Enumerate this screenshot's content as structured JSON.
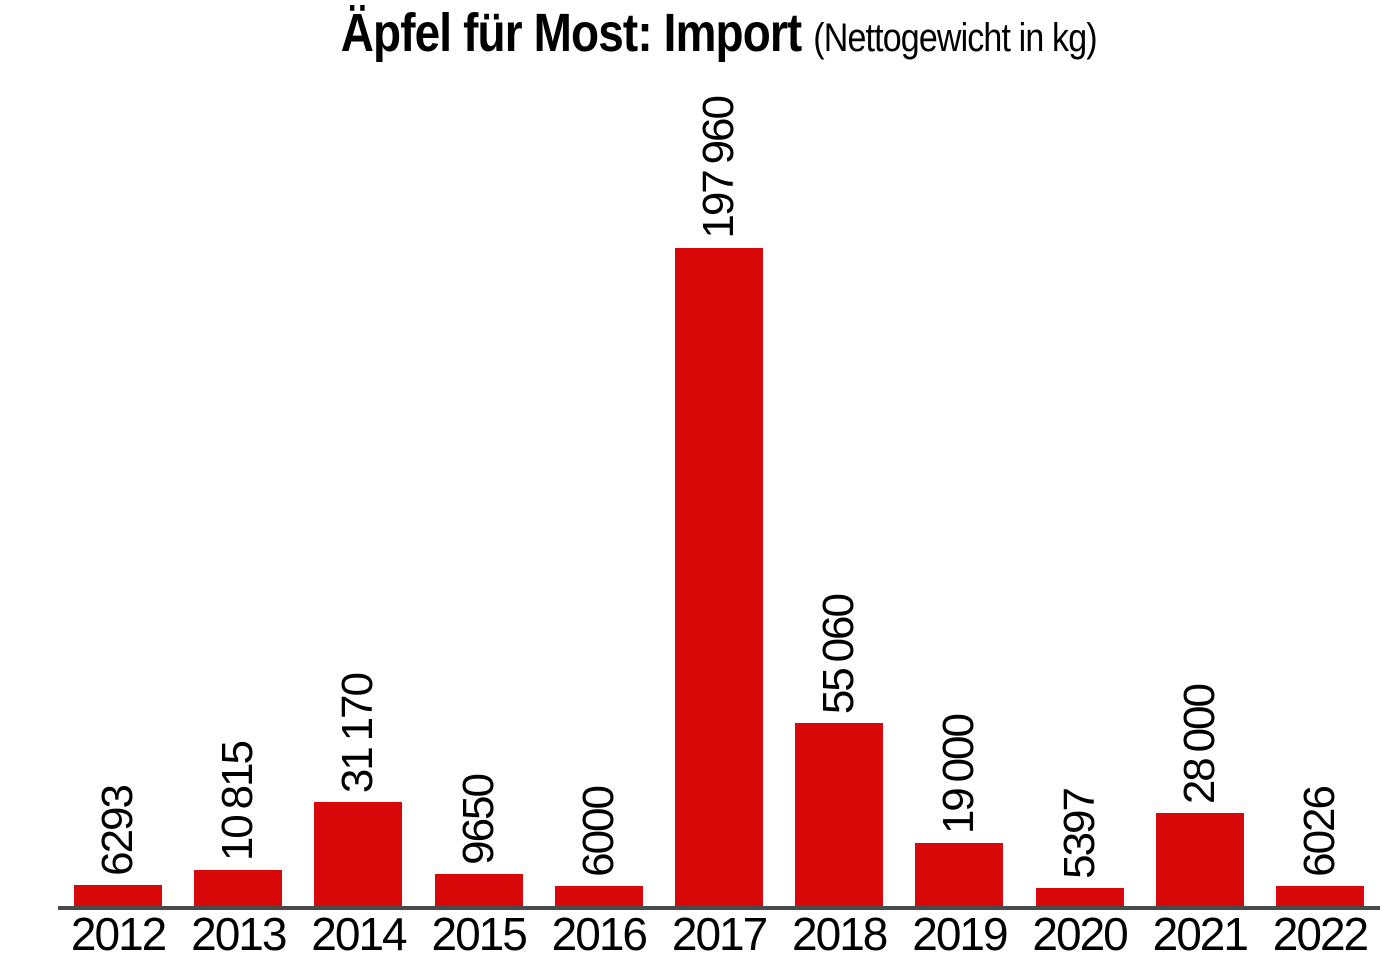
{
  "title": {
    "main": "Äpfel für Most: Import",
    "subtitle": "(Nettogewicht in kg)"
  },
  "colors": {
    "bar": "#d90808",
    "axis": "#4a4a4a",
    "text": "#000000",
    "background": "#ffffff"
  },
  "chart_data": {
    "type": "bar",
    "title": "Äpfel für Most: Import (Nettogewicht in kg)",
    "categories": [
      "2012",
      "2013",
      "2014",
      "2015",
      "2016",
      "2017",
      "2018",
      "2019",
      "2020",
      "2021",
      "2022"
    ],
    "values": [
      6293,
      10815,
      31170,
      9650,
      6000,
      197960,
      55060,
      19000,
      5397,
      28000,
      6026
    ],
    "value_labels": [
      "6293",
      "10 815",
      "31 170",
      "9650",
      "6000",
      "197 960",
      "55 060",
      "19 000",
      "5397",
      "28 000",
      "6026"
    ],
    "xlabel": "",
    "ylabel": "",
    "ylim": [
      0,
      197960
    ],
    "grid": false,
    "legend": "none",
    "value_label_rotation": -90,
    "bar_color": "#d90808"
  }
}
